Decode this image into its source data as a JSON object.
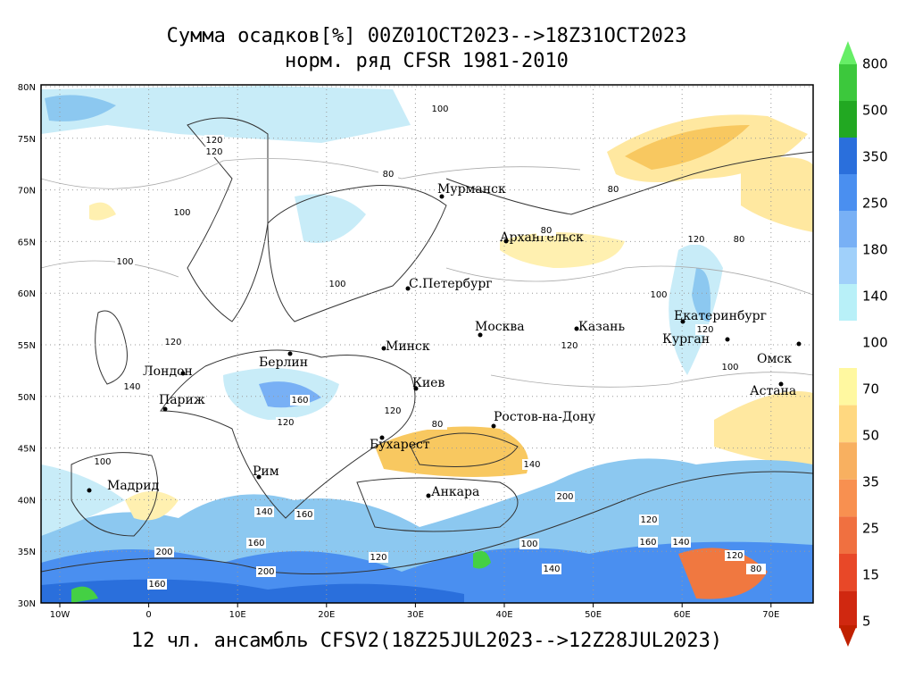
{
  "title": [
    "Сумма осадков[%] 00Z01OCT2023-->18Z31OCT2023",
    "норм. ряд CFSR 1981-2010"
  ],
  "footer": "12 чл. ансамбль CFSV2(18Z25JUL2023-->12Z28JUL2023)",
  "map": {
    "lon_labels": [
      "10W",
      "0",
      "10E",
      "20E",
      "30E",
      "40E",
      "50E",
      "60E",
      "70E"
    ],
    "lat_labels": [
      "80N",
      "75N",
      "70N",
      "65N",
      "60N",
      "55N",
      "50N",
      "45N",
      "40N",
      "35N",
      "30N"
    ],
    "cities": [
      "Мурманск",
      "Архангельск",
      "С.Петербург",
      "Москва",
      "Казань",
      "Екатеринбург",
      "Курган",
      "Омск",
      "Астана",
      "Минск",
      "Киев",
      "Берлин",
      "Лондон",
      "Париж",
      "Мадрид",
      "Рим",
      "Бухарест",
      "Ростов-на-Дону",
      "Анкара"
    ],
    "contour_labels": [
      "120",
      "100",
      "120",
      "100",
      "100",
      "80",
      "100",
      "80",
      "80",
      "120",
      "80",
      "100",
      "120",
      "100",
      "120",
      "120",
      "140",
      "160",
      "120",
      "120",
      "100",
      "80",
      "140",
      "200",
      "160",
      "200",
      "160",
      "140",
      "120",
      "160",
      "200",
      "140",
      "120",
      "80",
      "160",
      "100",
      "140",
      "120"
    ]
  },
  "colorbar": {
    "labels": [
      800,
      500,
      350,
      250,
      180,
      140,
      100,
      70,
      50,
      35,
      25,
      15,
      5
    ]
  }
}
